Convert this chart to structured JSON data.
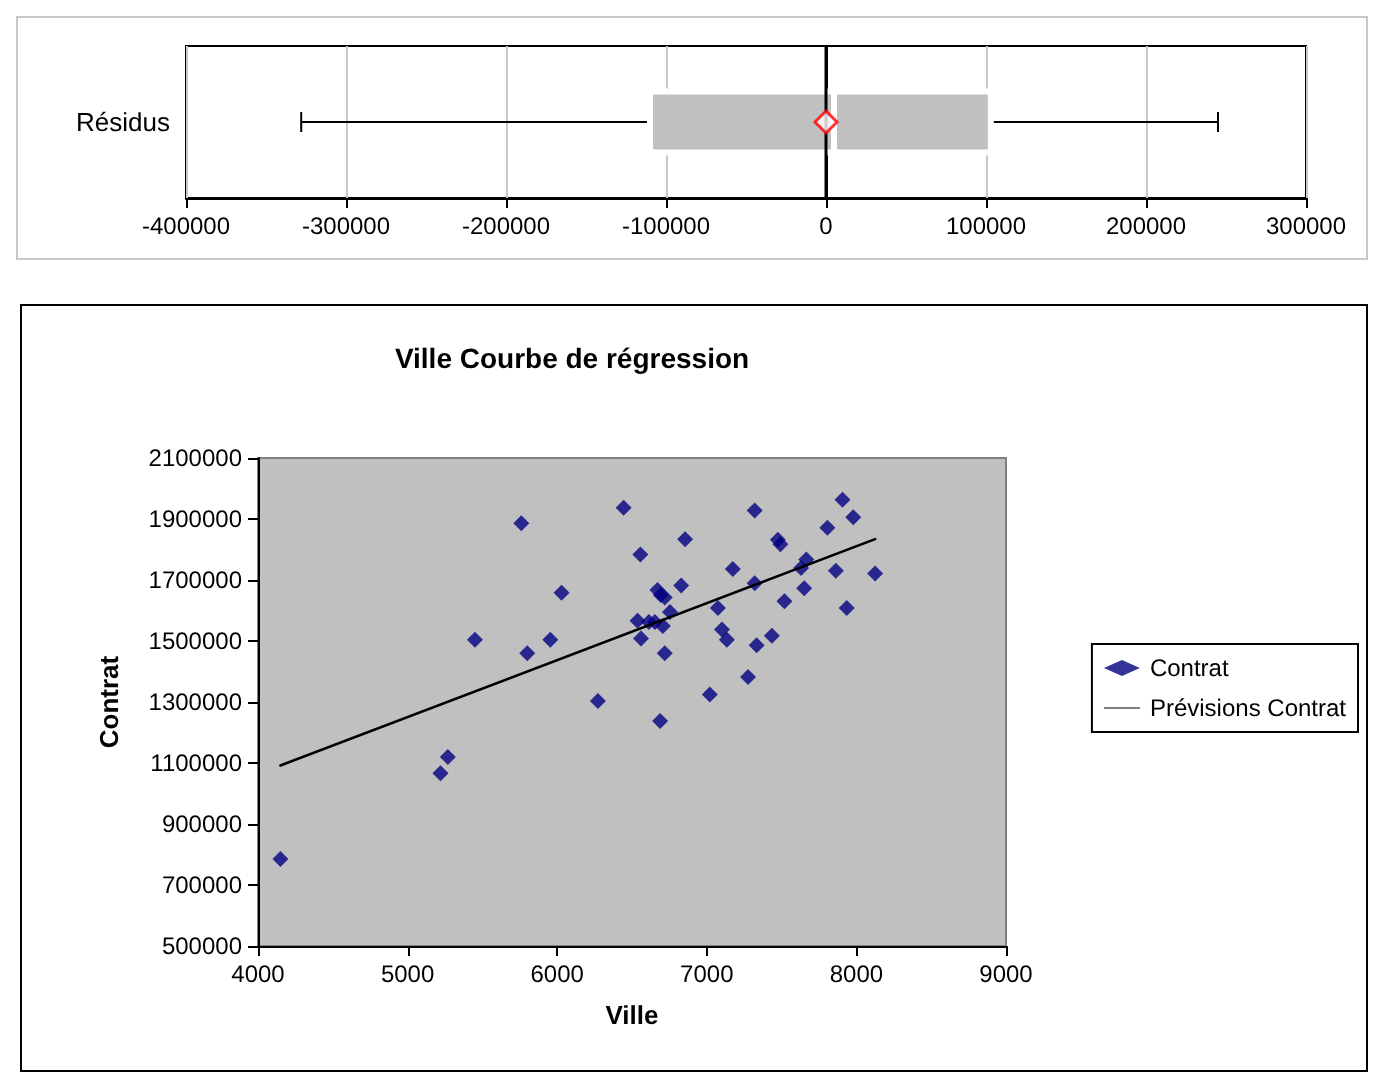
{
  "chart_data": [
    {
      "type": "box",
      "orientation": "horizontal",
      "categories": [
        "Résidus"
      ],
      "color": "#c0c0c0",
      "boxes": [
        {
          "low": -328000,
          "q1": -110000,
          "median": 5000,
          "q3": 103000,
          "high": 245000,
          "mean": 0
        }
      ],
      "xlim": [
        -400000,
        300000
      ],
      "xticks": [
        -400000,
        -300000,
        -200000,
        -100000,
        0,
        100000,
        200000,
        300000
      ],
      "grid": "x",
      "ref_lines": [
        {
          "axis": "x",
          "value": 0,
          "color": "#000000"
        }
      ],
      "legend": false
    },
    {
      "type": "scatter",
      "title": "Ville Courbe de régression",
      "xlabel": "Ville",
      "ylabel": "Contrat",
      "legend": "right",
      "grid": false,
      "xlim": [
        4000,
        9000
      ],
      "xticks": [
        4000,
        5000,
        6000,
        7000,
        8000,
        9000
      ],
      "ylim": [
        500000,
        2100000
      ],
      "yticks": [
        500000,
        700000,
        900000,
        1100000,
        1300000,
        1500000,
        1700000,
        1900000,
        2100000
      ],
      "series": [
        {
          "name": "Contrat",
          "type": "scatter",
          "color": "#000080",
          "marker": "diamond",
          "x": [
            5760,
            6444,
            6556,
            6029,
            5450,
            5800,
            5954,
            6272,
            5269,
            5220,
            4150,
            7320,
            7907,
            7979,
            7806,
            7475,
            7492,
            6855,
            7174,
            7665,
            7630,
            7863,
            8125,
            6829,
            7320,
            6670,
            6692,
            6719,
            7651,
            7519,
            7935,
            7074,
            6754,
            6537,
            6613,
            6653,
            6706,
            6560,
            7101,
            7134,
            7435,
            7333,
            6719,
            7276,
            7020,
            6688
          ],
          "values": [
            1886000,
            1937000,
            1784000,
            1658000,
            1504000,
            1460000,
            1504000,
            1303000,
            1120000,
            1066000,
            785000,
            1928000,
            1963000,
            1906000,
            1871000,
            1832000,
            1817000,
            1834000,
            1736000,
            1767000,
            1739000,
            1730000,
            1721000,
            1682000,
            1689000,
            1667000,
            1651000,
            1643000,
            1673000,
            1630000,
            1608000,
            1608000,
            1595000,
            1566000,
            1562000,
            1562000,
            1549000,
            1508000,
            1538000,
            1504000,
            1517000,
            1486000,
            1460000,
            1382000,
            1325000,
            1238000
          ]
        },
        {
          "name": "Prévisions Contrat",
          "type": "line",
          "color": "#000000",
          "marker": "none",
          "line_style": "solid",
          "x": [
            4150,
            8125
          ],
          "values": [
            1092000,
            1834000
          ]
        }
      ]
    }
  ]
}
